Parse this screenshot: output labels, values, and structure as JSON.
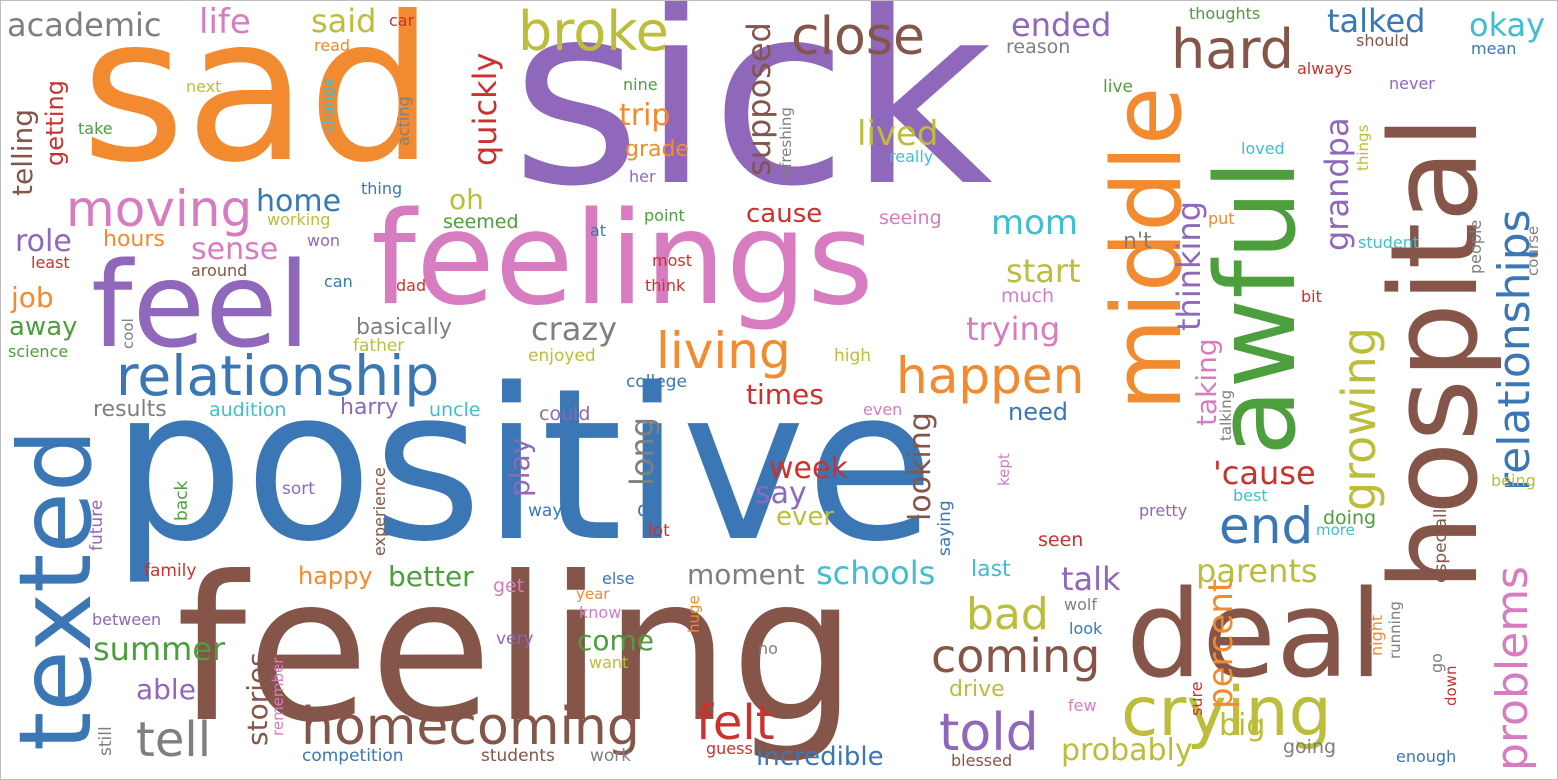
{
  "palette": {
    "blue": "#3a77b4",
    "orange": "#f28a30",
    "green": "#4d9e3c",
    "red": "#c9322e",
    "purple": "#8f67bb",
    "brown": "#845548",
    "pink": "#d87cc2",
    "gray": "#7f7f7f",
    "olive": "#bcbd3a",
    "cyan": "#3fbecf"
  },
  "words": [
    "sad",
    "sick",
    "positive",
    "feeling",
    "feelings",
    "feel",
    "deal",
    "awful",
    "hospital",
    "middle",
    "texted",
    "relationship",
    "homecoming",
    "crying",
    "broke",
    "close",
    "hard",
    "relationships",
    "problems",
    "growing",
    "moving",
    "living",
    "happen",
    "coming",
    "tell",
    "felt",
    "told",
    "bad",
    "end",
    "said",
    "life",
    "academic",
    "talked",
    "okay",
    "ended",
    "supposed",
    "quickly",
    "lived",
    "grandpa",
    "mom",
    "start",
    "trying",
    "crazy",
    "thinking",
    "taking",
    "telling",
    "getting",
    "role",
    "job",
    "away",
    "home",
    "sense",
    "hours",
    "oh",
    "trip",
    "cause",
    "grade",
    "week",
    "say",
    "ever",
    "looking",
    "long",
    "play",
    "schools",
    "moment",
    "better",
    "happy",
    "talk",
    "parents",
    "percent",
    "big",
    "probably",
    "incredible",
    "drive",
    "summer",
    "come",
    "stories",
    "able",
    "results",
    "audition",
    "harry",
    "uncle",
    "times",
    "need",
    "'cause",
    "science",
    "basically",
    "father",
    "enjoyed",
    "college",
    "high",
    "could",
    "do",
    "way",
    "lot",
    "sort",
    "experience",
    "future",
    "back",
    "family",
    "between",
    "competition",
    "students",
    "work",
    "guess",
    "blessed",
    "going",
    "enough",
    "seen",
    "last",
    "else",
    "year",
    "know",
    "huge",
    "get",
    "wolf",
    "look",
    "few",
    "very",
    "want",
    "no",
    "remember",
    "still",
    "sure",
    "kept",
    "saying",
    "pretty",
    "doing",
    "more",
    "best",
    "especially",
    "being",
    "night",
    "running",
    "go",
    "down",
    "thoughts",
    "should",
    "mean",
    "always",
    "never",
    "reason",
    "live",
    "loved",
    "things",
    "really",
    "nine",
    "next",
    "read",
    "car",
    "take",
    "change",
    "acting",
    "refreshing",
    "her",
    "point",
    "working",
    "thing",
    "won",
    "seemed",
    "at",
    "seeing",
    "put",
    "student",
    "course",
    "people",
    "least",
    "around",
    "can",
    "dad",
    "most",
    "think",
    "much",
    "bit",
    "cool",
    "n't",
    "talking",
    "even"
  ]
}
